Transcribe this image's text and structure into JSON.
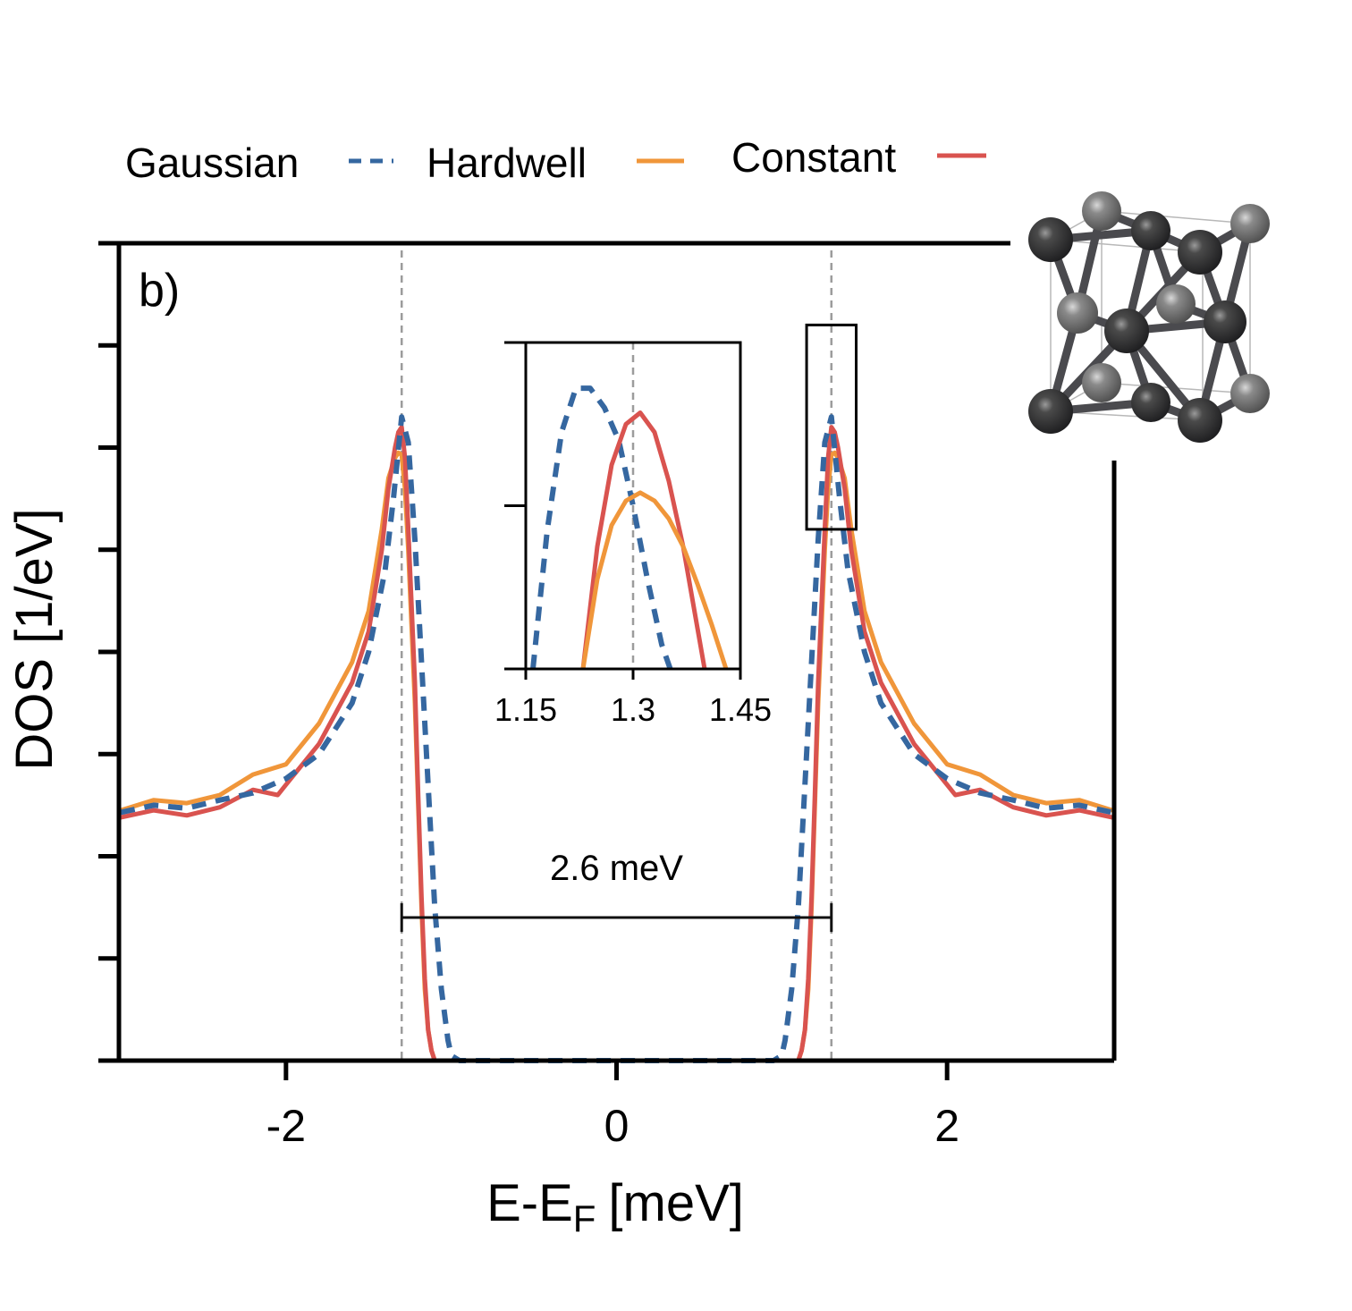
{
  "chart_data": {
    "type": "line",
    "panel_label": "b)",
    "xlabel": {
      "main": "E-E",
      "sub": "F",
      "unit": "[meV]"
    },
    "ylabel": "DOS [1/eV]",
    "xlim": [
      -3.0,
      3.0
    ],
    "ylim": [
      0,
      8
    ],
    "xticks": [
      -2,
      0,
      2
    ],
    "xtick_labels": [
      "-2",
      "0",
      "2"
    ],
    "yticks": [
      0,
      1,
      2,
      3,
      4,
      5,
      6,
      7,
      8
    ],
    "ytick_labels_shown": false,
    "grid": false,
    "legend_position": "top",
    "reference_lines_x": [
      -1.3,
      1.3
    ],
    "annotation": {
      "text": "2.6 meV",
      "x_from": -1.3,
      "x_to": 1.3,
      "y": 1.4
    },
    "zoom_box": {
      "x": [
        1.15,
        1.45
      ],
      "y": [
        5.2,
        7.2
      ]
    },
    "series": [
      {
        "name": "Gaussian",
        "color": "#3567a0",
        "dash": "dashed",
        "x": [
          -3.0,
          -2.8,
          -2.6,
          -2.4,
          -2.2,
          -2.0,
          -1.8,
          -1.6,
          -1.5,
          -1.4,
          -1.35,
          -1.3,
          -1.26,
          -1.22,
          -1.18,
          -1.14,
          -1.1,
          -1.06,
          -1.02,
          -1.0,
          -0.95,
          0.95,
          1.0,
          1.02,
          1.06,
          1.1,
          1.14,
          1.18,
          1.22,
          1.26,
          1.3,
          1.35,
          1.4,
          1.5,
          1.6,
          1.8,
          2.0,
          2.2,
          2.4,
          2.6,
          2.8,
          3.0
        ],
        "y": [
          2.43,
          2.5,
          2.47,
          2.55,
          2.62,
          2.76,
          3.0,
          3.5,
          4.0,
          4.8,
          5.5,
          6.3,
          6.05,
          5.1,
          3.9,
          2.7,
          1.5,
          0.7,
          0.2,
          0.05,
          0.0,
          0.0,
          0.05,
          0.2,
          0.7,
          1.5,
          2.7,
          3.9,
          5.1,
          6.05,
          6.3,
          5.5,
          4.8,
          4.0,
          3.5,
          3.0,
          2.76,
          2.62,
          2.55,
          2.47,
          2.5,
          2.43
        ]
      },
      {
        "name": "Hardwell",
        "color": "#f0963a",
        "dash": "solid",
        "x": [
          -3.0,
          -2.8,
          -2.6,
          -2.4,
          -2.2,
          -2.0,
          -1.8,
          -1.6,
          -1.5,
          -1.42,
          -1.38,
          -1.34,
          -1.32,
          -1.3,
          -1.28,
          -1.26,
          -1.22,
          -1.2,
          -1.18,
          -1.16,
          -1.14,
          -1.12,
          -1.1,
          1.1,
          1.12,
          1.14,
          1.16,
          1.18,
          1.2,
          1.22,
          1.26,
          1.28,
          1.3,
          1.32,
          1.34,
          1.38,
          1.42,
          1.5,
          1.6,
          1.8,
          2.0,
          2.2,
          2.4,
          2.6,
          2.8,
          3.0
        ],
        "y": [
          2.45,
          2.55,
          2.52,
          2.6,
          2.8,
          2.9,
          3.3,
          3.9,
          4.4,
          5.2,
          5.7,
          5.9,
          5.95,
          5.93,
          5.6,
          5.0,
          3.5,
          2.5,
          1.5,
          0.7,
          0.3,
          0.1,
          0.0,
          0.0,
          0.1,
          0.3,
          0.7,
          1.5,
          2.5,
          3.5,
          5.0,
          5.6,
          5.93,
          5.95,
          5.9,
          5.7,
          5.2,
          4.4,
          3.9,
          3.3,
          2.9,
          2.8,
          2.6,
          2.52,
          2.55,
          2.45
        ]
      },
      {
        "name": "Constant",
        "color": "#d9534f",
        "dash": "solid",
        "x": [
          -3.0,
          -2.8,
          -2.6,
          -2.4,
          -2.2,
          -2.05,
          -2.0,
          -1.8,
          -1.6,
          -1.5,
          -1.42,
          -1.38,
          -1.34,
          -1.32,
          -1.3,
          -1.28,
          -1.26,
          -1.22,
          -1.2,
          -1.18,
          -1.16,
          -1.14,
          -1.12,
          -1.1,
          1.1,
          1.12,
          1.14,
          1.16,
          1.18,
          1.2,
          1.22,
          1.26,
          1.28,
          1.3,
          1.32,
          1.34,
          1.38,
          1.42,
          1.5,
          1.6,
          1.8,
          2.0,
          2.05,
          2.2,
          2.4,
          2.6,
          2.8,
          3.0
        ],
        "y": [
          2.38,
          2.45,
          2.4,
          2.48,
          2.65,
          2.6,
          2.7,
          3.1,
          3.7,
          4.2,
          5.0,
          5.6,
          6.0,
          6.15,
          6.2,
          5.9,
          5.2,
          3.7,
          2.6,
          1.6,
          0.8,
          0.3,
          0.1,
          0.0,
          0.0,
          0.1,
          0.3,
          0.8,
          1.6,
          2.6,
          3.7,
          5.2,
          5.9,
          6.2,
          6.15,
          6.0,
          5.6,
          5.0,
          4.2,
          3.7,
          3.1,
          2.7,
          2.6,
          2.65,
          2.48,
          2.4,
          2.45,
          2.38
        ]
      }
    ],
    "inset": {
      "xlim": [
        1.15,
        1.45
      ],
      "ylim": [
        0,
        2
      ],
      "xticks": [
        1.15,
        1.3,
        1.45
      ],
      "xtick_labels": [
        "1.15",
        "1.3",
        "1.45"
      ],
      "yticks": [
        0,
        1,
        2
      ],
      "reference_line_x": 1.3,
      "series": [
        {
          "name": "Gaussian",
          "color": "#3567a0",
          "dash": "dashed",
          "x": [
            1.16,
            1.18,
            1.2,
            1.22,
            1.24,
            1.26,
            1.28,
            1.3,
            1.32,
            1.34,
            1.36
          ],
          "y": [
            0.0,
            0.85,
            1.45,
            1.72,
            1.72,
            1.6,
            1.4,
            1.0,
            0.55,
            0.15,
            -0.1
          ]
        },
        {
          "name": "Constant",
          "color": "#d9534f",
          "dash": "solid",
          "x": [
            1.23,
            1.25,
            1.27,
            1.29,
            1.31,
            1.33,
            1.35,
            1.37,
            1.39,
            1.4
          ],
          "y": [
            0.0,
            0.75,
            1.25,
            1.5,
            1.57,
            1.45,
            1.15,
            0.75,
            0.25,
            0.0
          ]
        },
        {
          "name": "Hardwell",
          "color": "#f0963a",
          "dash": "solid",
          "x": [
            1.23,
            1.25,
            1.27,
            1.29,
            1.31,
            1.33,
            1.35,
            1.37,
            1.39,
            1.41,
            1.43
          ],
          "y": [
            0.0,
            0.55,
            0.88,
            1.03,
            1.08,
            1.03,
            0.92,
            0.75,
            0.52,
            0.27,
            0.0
          ]
        }
      ]
    }
  }
}
